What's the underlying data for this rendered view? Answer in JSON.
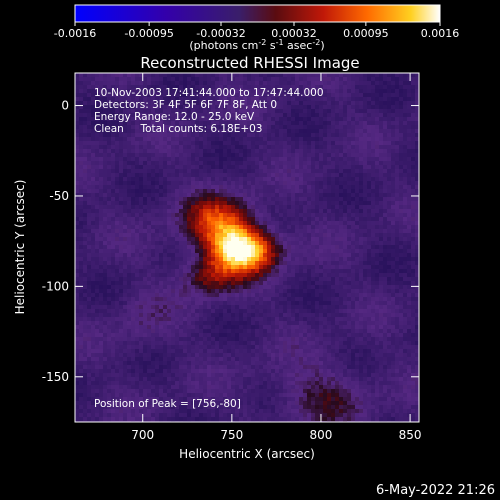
{
  "chart_data": {
    "type": "heatmap",
    "title": "Reconstructed RHESSI Image",
    "xlabel": "Heliocentric X (arcsec)",
    "ylabel": "Heliocentric Y (arcsec)",
    "xlim": [
      662,
      855
    ],
    "ylim": [
      -175,
      18
    ],
    "xticks": [
      700,
      750,
      800,
      850
    ],
    "yticks": [
      0,
      -50,
      -100,
      -150
    ],
    "colorbar": {
      "range": [
        -0.0016,
        0.0016
      ],
      "ticks": [
        "-0.0016",
        "-0.00095",
        "-0.00032",
        "0.00032",
        "0.00095",
        "0.0016"
      ],
      "unit_prefix": "(photons cm",
      "unit_exp1": "-2",
      "unit_mid": " s",
      "unit_exp2": "-1",
      "unit_mid2": " asec",
      "unit_exp3": "-2",
      "unit_suffix": ")"
    },
    "annotations": {
      "time_range": "10-Nov-2003 17:41:44.000 to 17:47:44.000",
      "detectors": "Detectors: 3F 4F 5F 6F 7F 8F, Att 0",
      "energy": "Energy Range: 12.0 - 25.0 keV",
      "clean": "Clean     Total counts: 6.18E+03",
      "peak": "Position of Peak = [756,-80]"
    },
    "peak": {
      "x": 756,
      "y": -80,
      "value": 0.0016
    },
    "sources": [
      {
        "x": 756,
        "y": -80,
        "sx": 13,
        "sy": 9,
        "amp": 1.0
      },
      {
        "x": 742,
        "y": -64,
        "sx": 14,
        "sy": 10,
        "amp": 0.55
      },
      {
        "x": 737,
        "y": -95,
        "sx": 11,
        "sy": 8,
        "amp": 0.35
      },
      {
        "x": 800,
        "y": -160,
        "sx": 18,
        "sy": 12,
        "amp": 0.25
      },
      {
        "x": 700,
        "y": -120,
        "sx": 10,
        "sy": 12,
        "amp": 0.12
      }
    ]
  },
  "footer": {
    "date": "6-May-2022 21:26"
  }
}
